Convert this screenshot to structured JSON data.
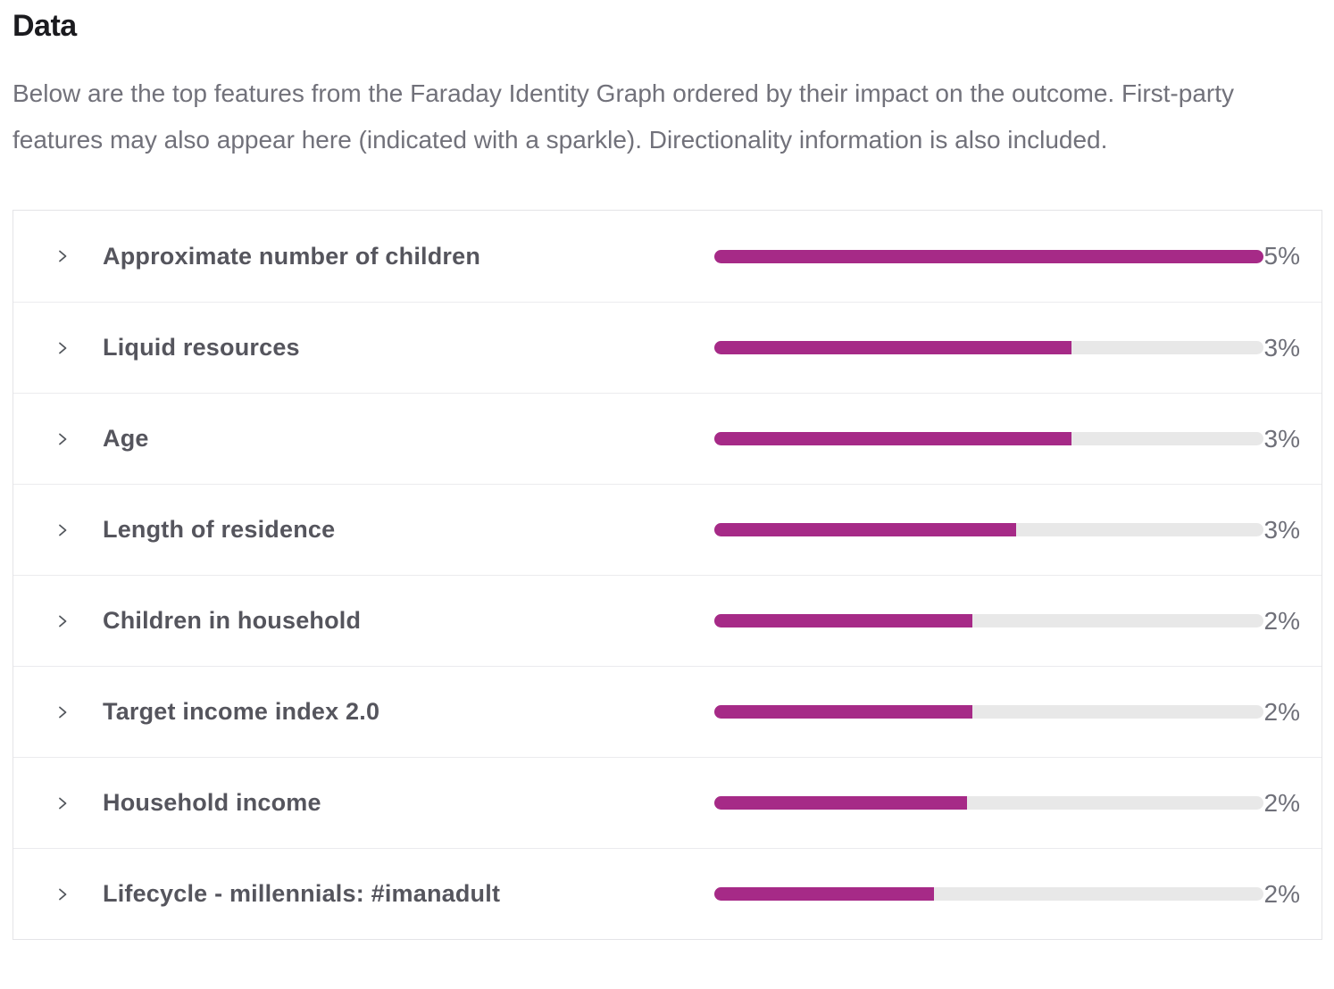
{
  "page": {
    "title": "Data",
    "description": "Below are the top features from the Faraday Identity Graph ordered by their impact on the outcome. First-party features may also appear here (indicated with a sparkle). Directionality information is also included."
  },
  "colors": {
    "bar_fill": "#A62A87",
    "bar_track": "#E8E8E8",
    "card_border": "#E4E4E7",
    "row_divider": "#EBEBEE",
    "title_text": "#1B1B1F",
    "description_text": "#71717A",
    "label_text": "#55555D",
    "value_text": "#6F7079",
    "chevron": "#52565C"
  },
  "features": {
    "rows": [
      {
        "label": "Approximate number of children",
        "value_label": "5%",
        "fill_percent": 100
      },
      {
        "label": "Liquid resources",
        "value_label": "3%",
        "fill_percent": 65
      },
      {
        "label": "Age",
        "value_label": "3%",
        "fill_percent": 65
      },
      {
        "label": "Length of residence",
        "value_label": "3%",
        "fill_percent": 55
      },
      {
        "label": "Children in household",
        "value_label": "2%",
        "fill_percent": 47
      },
      {
        "label": "Target income index 2.0",
        "value_label": "2%",
        "fill_percent": 47
      },
      {
        "label": "Household income",
        "value_label": "2%",
        "fill_percent": 46
      },
      {
        "label": "Lifecycle - millennials: #imanadult",
        "value_label": "2%",
        "fill_percent": 40
      }
    ]
  },
  "chart_data": {
    "type": "bar",
    "orientation": "horizontal",
    "title": "Data",
    "categories": [
      "Approximate number of children",
      "Liquid resources",
      "Age",
      "Length of residence",
      "Children in household",
      "Target income index 2.0",
      "Household income",
      "Lifecycle - millennials: #imanadult"
    ],
    "values": [
      5,
      3,
      3,
      3,
      2,
      2,
      2,
      2
    ],
    "value_suffix": "%",
    "bar_fill_fraction": [
      1.0,
      0.65,
      0.65,
      0.55,
      0.47,
      0.47,
      0.46,
      0.4
    ],
    "legend": false,
    "grid": false
  }
}
